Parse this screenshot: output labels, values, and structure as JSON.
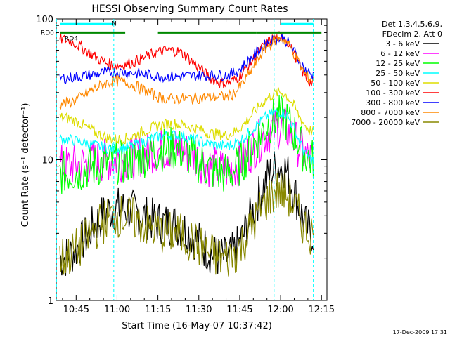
{
  "chart_data": {
    "type": "line",
    "title": "HESSI Observing Summary Count Rates",
    "xlabel": "Start Time (16-May-07 10:37:42)",
    "ylabel": "Count Rate (s⁻¹ detector⁻¹)",
    "yscale": "log",
    "ylim": [
      1,
      100
    ],
    "xlim": [
      "10:37:42",
      "12:17:00"
    ],
    "x_ticks": [
      "10:45",
      "11:00",
      "11:15",
      "11:30",
      "11:45",
      "12:00",
      "12:15"
    ],
    "y_ticks": [
      "1",
      "10",
      "100"
    ],
    "legend_title": [
      "Det 1,3,4,5,6,9,",
      "FDecim 2, Att 0"
    ],
    "legend_position": "right",
    "series": [
      {
        "name": "3 - 6 keV",
        "color": "#000000",
        "values": [
          [
            10.65,
            2.0
          ],
          [
            11.0,
            4.5
          ],
          [
            11.33,
            3.5
          ],
          [
            11.66,
            2.0
          ],
          [
            12.0,
            9.0
          ],
          [
            12.2,
            3.0
          ]
        ]
      },
      {
        "name": "6 - 12 keV",
        "color": "#ff00ff",
        "values": [
          [
            10.65,
            9.0
          ],
          [
            11.0,
            10.0
          ],
          [
            11.33,
            12.0
          ],
          [
            11.66,
            8.5
          ],
          [
            12.0,
            17.0
          ],
          [
            12.2,
            10.0
          ]
        ]
      },
      {
        "name": "12 - 25 keV",
        "color": "#00ff00",
        "values": [
          [
            10.65,
            8.0
          ],
          [
            11.0,
            9.5
          ],
          [
            11.33,
            12.0
          ],
          [
            11.66,
            8.0
          ],
          [
            12.0,
            20.0
          ],
          [
            12.2,
            10.0
          ]
        ]
      },
      {
        "name": "25 - 50 keV",
        "color": "#00ffff",
        "values": [
          [
            10.65,
            14.0
          ],
          [
            11.0,
            12.0
          ],
          [
            11.33,
            15.0
          ],
          [
            11.66,
            12.5
          ],
          [
            12.0,
            22.0
          ],
          [
            12.2,
            10.0
          ]
        ]
      },
      {
        "name": "50 - 100 keV",
        "color": "#dddd00",
        "values": [
          [
            10.65,
            20.0
          ],
          [
            11.0,
            14.0
          ],
          [
            11.33,
            18.0
          ],
          [
            11.66,
            15.0
          ],
          [
            12.0,
            30.0
          ],
          [
            12.2,
            16.0
          ]
        ]
      },
      {
        "name": "100 - 300 keV",
        "color": "#ff0000",
        "values": [
          [
            10.65,
            72.0
          ],
          [
            11.0,
            47.0
          ],
          [
            11.33,
            60.0
          ],
          [
            11.66,
            35.0
          ],
          [
            12.0,
            75.0
          ],
          [
            12.2,
            35.0
          ]
        ]
      },
      {
        "name": "300 - 800 keV",
        "color": "#0000ff",
        "values": [
          [
            10.65,
            38.0
          ],
          [
            11.0,
            42.0
          ],
          [
            11.33,
            39.0
          ],
          [
            11.66,
            40.0
          ],
          [
            12.0,
            73.0
          ],
          [
            12.2,
            40.0
          ]
        ]
      },
      {
        "name": "800 - 7000 keV",
        "color": "#ff8800",
        "values": [
          [
            10.65,
            25.0
          ],
          [
            11.0,
            36.0
          ],
          [
            11.33,
            27.0
          ],
          [
            11.66,
            28.0
          ],
          [
            12.0,
            72.0
          ],
          [
            12.2,
            37.0
          ]
        ]
      },
      {
        "name": "7000 - 20000 keV",
        "color": "#888800",
        "values": [
          [
            10.65,
            2.0
          ],
          [
            11.0,
            4.0
          ],
          [
            11.33,
            3.0
          ],
          [
            11.66,
            2.0
          ],
          [
            12.0,
            6.0
          ],
          [
            12.2,
            3.0
          ]
        ]
      }
    ],
    "annotations": {
      "rd0_label": "RD0",
      "rd4_label": "RD4",
      "n_label": "N",
      "rd0_color": "#008800",
      "n_color": "#00ffff",
      "rd0_value": 80,
      "n_value": 92,
      "rd0_intervals": [
        [
          10.65,
          11.05
        ],
        [
          11.25,
          11.85
        ],
        [
          11.85,
          12.25
        ]
      ],
      "n_intervals": [
        [
          10.65,
          10.98
        ],
        [
          12.0,
          12.2
        ]
      ],
      "n_boundaries": [
        10.63,
        10.98,
        11.96,
        12.2
      ]
    },
    "footer_timestamp": "17-Dec-2009 17:31"
  }
}
